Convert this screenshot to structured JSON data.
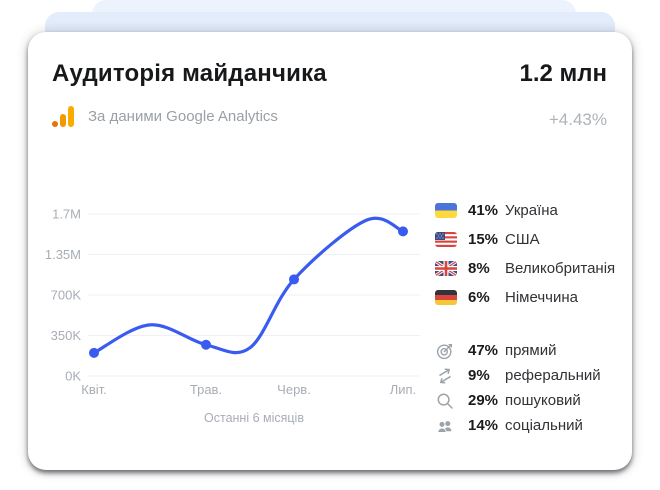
{
  "card": {
    "title": "Аудиторія майданчика",
    "total_value": "1.2 млн",
    "source_caption": "За даними Google Analytics",
    "growth": "+4.43%"
  },
  "chart_data": {
    "type": "line",
    "title": "Аудиторія майданчика — відвідувачі за місяцями",
    "categories": [
      "Квіт.",
      "Трав.",
      "Черв.",
      "Лип."
    ],
    "values": [
      200000,
      270000,
      950000,
      1550000
    ],
    "y_ticks": [
      "1.7M",
      "1.35M",
      "700K",
      "350K",
      "0K"
    ],
    "y_tick_values": [
      0,
      350000,
      700000,
      1350000,
      1700000
    ],
    "ylim": [
      0,
      1700000
    ],
    "caption": "Останні 6 місяців",
    "line_color": "#3a5bf0",
    "point_color": "#3a5bf0",
    "grid": "horizontal",
    "legend": "none"
  },
  "countries": [
    {
      "flag": "ukraine-flag",
      "pct": "41%",
      "name": "Україна"
    },
    {
      "flag": "usa-flag",
      "pct": "15%",
      "name": "США"
    },
    {
      "flag": "uk-flag",
      "pct": "8%",
      "name": "Великобританія"
    },
    {
      "flag": "germany-flag",
      "pct": "6%",
      "name": "Німеччина"
    }
  ],
  "traffic_sources": [
    {
      "icon": "target-icon",
      "pct": "47%",
      "name": "прямий"
    },
    {
      "icon": "referral-arrows-icon",
      "pct": "9%",
      "name": "реферальний"
    },
    {
      "icon": "search-icon",
      "pct": "29%",
      "name": "пошуковий"
    },
    {
      "icon": "users-icon",
      "pct": "14%",
      "name": "соціальний"
    }
  ],
  "colors": {
    "accent_blue": "#3a5bf0",
    "ga_orange_dark": "#e8710a",
    "ga_orange_light": "#f9ab00",
    "muted_text": "#9aa0a6",
    "stack_back": "#edf3fc",
    "stack_mid": "#e2ecfa"
  }
}
